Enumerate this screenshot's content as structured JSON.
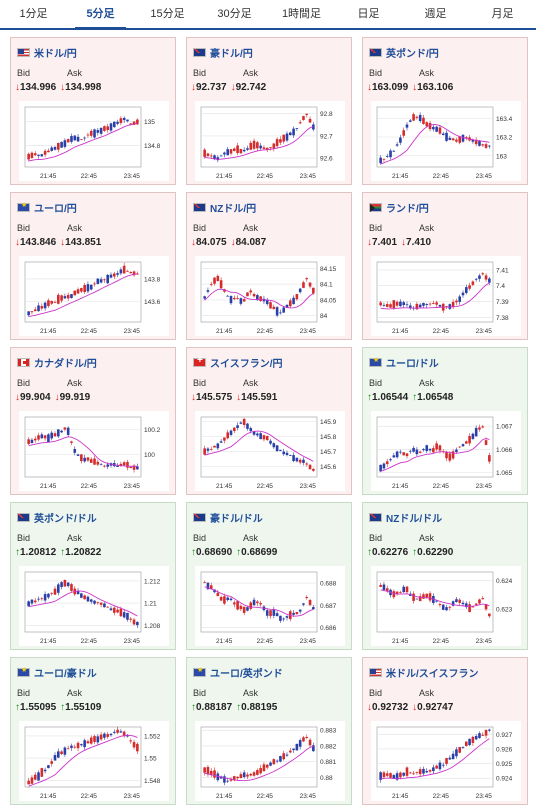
{
  "tabs": [
    {
      "label": "1分足",
      "active": false
    },
    {
      "label": "5分足",
      "active": true
    },
    {
      "label": "15分足",
      "active": false
    },
    {
      "label": "30分足",
      "active": false
    },
    {
      "label": "1時間足",
      "active": false
    },
    {
      "label": "日足",
      "active": false
    },
    {
      "label": "週足",
      "active": false
    },
    {
      "label": "月足",
      "active": false
    }
  ],
  "labels": {
    "bid": "Bid",
    "ask": "Ask"
  },
  "x_ticks": [
    "21:45",
    "22:45",
    "23:45"
  ],
  "colors": {
    "up_candle": "#d62b2b",
    "down_candle": "#2a3fa8",
    "ma_line": "#cc33cc",
    "arrow_down": "#dd2222",
    "arrow_up": "#1a8a1a",
    "card_down_bg": "#fdf0f0",
    "card_up_bg": "#eef6ee"
  },
  "pairs": [
    {
      "name": "米ドル/円",
      "flag": "us",
      "bid": "134.996",
      "ask": "134.998",
      "direction": "down",
      "y_ticks": [
        "135",
        "134.8"
      ],
      "ymin": 134.62,
      "ymax": 135.12,
      "trend": [
        134.7,
        134.72,
        134.71,
        134.75,
        134.78,
        134.8,
        134.83,
        134.86,
        134.84,
        134.88,
        134.9,
        134.92,
        134.94,
        134.96,
        134.99,
        135.02,
        134.98,
        135.0
      ]
    },
    {
      "name": "豪ドル/円",
      "flag": "au",
      "bid": "92.737",
      "ask": "92.742",
      "direction": "down",
      "y_ticks": [
        "92.8",
        "92.7",
        "92.6"
      ],
      "ymin": 92.56,
      "ymax": 92.83,
      "trend": [
        92.62,
        92.61,
        92.6,
        92.62,
        92.63,
        92.64,
        92.63,
        92.65,
        92.66,
        92.65,
        92.64,
        92.66,
        92.68,
        92.7,
        92.72,
        92.76,
        92.8,
        92.74
      ]
    },
    {
      "name": "英ポンド/円",
      "flag": "uk",
      "bid": "163.099",
      "ask": "163.106",
      "direction": "down",
      "y_ticks": [
        "163.4",
        "163.2",
        "163"
      ],
      "ymin": 162.88,
      "ymax": 163.52,
      "trend": [
        162.95,
        163.0,
        163.05,
        163.15,
        163.3,
        163.4,
        163.42,
        163.35,
        163.3,
        163.28,
        163.22,
        163.18,
        163.16,
        163.2,
        163.18,
        163.14,
        163.12,
        163.1
      ]
    },
    {
      "name": "ユーロ/円",
      "flag": "eu",
      "bid": "143.846",
      "ask": "143.851",
      "direction": "down",
      "y_ticks": [
        "143.8",
        "143.6"
      ],
      "ymin": 143.42,
      "ymax": 143.95,
      "trend": [
        143.5,
        143.52,
        143.55,
        143.58,
        143.6,
        143.62,
        143.65,
        143.66,
        143.7,
        143.72,
        143.74,
        143.78,
        143.8,
        143.82,
        143.85,
        143.88,
        143.86,
        143.85
      ]
    },
    {
      "name": "NZドル/円",
      "flag": "nz",
      "bid": "84.075",
      "ask": "84.087",
      "direction": "down",
      "y_ticks": [
        "84.15",
        "84.1",
        "84.05",
        "84"
      ],
      "ymin": 83.98,
      "ymax": 84.17,
      "trend": [
        84.06,
        84.1,
        84.12,
        84.08,
        84.05,
        84.06,
        84.04,
        84.08,
        84.06,
        84.05,
        84.04,
        84.02,
        84.01,
        84.03,
        84.05,
        84.08,
        84.12,
        84.08
      ]
    },
    {
      "name": "ランド/円",
      "flag": "za",
      "bid": "7.401",
      "ask": "7.410",
      "direction": "down",
      "y_ticks": [
        "7.41",
        "7.4",
        "7.39",
        "7.38"
      ],
      "ymin": 7.377,
      "ymax": 7.415,
      "trend": [
        7.388,
        7.387,
        7.388,
        7.389,
        7.388,
        7.386,
        7.387,
        7.388,
        7.389,
        7.388,
        7.386,
        7.387,
        7.39,
        7.395,
        7.4,
        7.404,
        7.408,
        7.403
      ]
    },
    {
      "name": "カナダドル/円",
      "flag": "ca",
      "bid": "99.904",
      "ask": "99.919",
      "direction": "down",
      "y_ticks": [
        "100.2",
        "100"
      ],
      "ymin": 99.82,
      "ymax": 100.3,
      "trend": [
        100.1,
        100.12,
        100.14,
        100.13,
        100.16,
        100.18,
        100.22,
        100.05,
        99.98,
        99.96,
        99.95,
        99.93,
        99.9,
        99.92,
        99.91,
        99.92,
        99.9,
        99.9
      ]
    },
    {
      "name": "スイスフラン/円",
      "flag": "ch",
      "bid": "145.575",
      "ask": "145.591",
      "direction": "down",
      "y_ticks": [
        "145.9",
        "145.8",
        "145.7",
        "145.6"
      ],
      "ymin": 145.53,
      "ymax": 145.93,
      "trend": [
        145.7,
        145.72,
        145.74,
        145.78,
        145.82,
        145.86,
        145.9,
        145.85,
        145.82,
        145.8,
        145.78,
        145.74,
        145.7,
        145.68,
        145.66,
        145.64,
        145.62,
        145.58
      ]
    },
    {
      "name": "ユーロ/ドル",
      "flag": "eu",
      "bid": "1.06544",
      "ask": "1.06548",
      "direction": "up",
      "y_ticks": [
        "1.067",
        "1.066",
        "1.065"
      ],
      "ymin": 1.0648,
      "ymax": 1.0674,
      "trend": [
        1.0652,
        1.0654,
        1.0657,
        1.0659,
        1.0657,
        1.066,
        1.0658,
        1.0661,
        1.0659,
        1.0662,
        1.0658,
        1.0656,
        1.066,
        1.0662,
        1.0664,
        1.0668,
        1.067,
        1.0656
      ]
    },
    {
      "name": "英ポンド/ドル",
      "flag": "uk",
      "bid": "1.20812",
      "ask": "1.20822",
      "direction": "up",
      "y_ticks": [
        "1.212",
        "1.21",
        "1.208"
      ],
      "ymin": 1.2074,
      "ymax": 1.2128,
      "trend": [
        1.21,
        1.2102,
        1.2104,
        1.2106,
        1.211,
        1.2116,
        1.2118,
        1.2112,
        1.2108,
        1.2104,
        1.2102,
        1.21,
        1.2098,
        1.2094,
        1.2092,
        1.209,
        1.2086,
        1.2081
      ]
    },
    {
      "name": "豪ドル/ドル",
      "flag": "au",
      "bid": "0.68690",
      "ask": "0.68699",
      "direction": "up",
      "y_ticks": [
        "0.688",
        "0.687",
        "0.686"
      ],
      "ymin": 0.6858,
      "ymax": 0.6885,
      "trend": [
        0.688,
        0.6878,
        0.6875,
        0.6872,
        0.6873,
        0.687,
        0.6868,
        0.6869,
        0.6872,
        0.687,
        0.6866,
        0.6867,
        0.6864,
        0.6865,
        0.6866,
        0.6868,
        0.6874,
        0.6869
      ]
    },
    {
      "name": "NZドル/ドル",
      "flag": "nz",
      "bid": "0.62276",
      "ask": "0.62290",
      "direction": "up",
      "y_ticks": [
        "0.624",
        "0.623"
      ],
      "ymin": 0.6222,
      "ymax": 0.6243,
      "trend": [
        0.6238,
        0.6237,
        0.6235,
        0.6236,
        0.6237,
        0.6234,
        0.6233,
        0.6235,
        0.6234,
        0.6232,
        0.623,
        0.6231,
        0.6233,
        0.6232,
        0.623,
        0.6232,
        0.6234,
        0.6228
      ]
    },
    {
      "name": "ユーロ/豪ドル",
      "flag": "eu",
      "bid": "1.55095",
      "ask": "1.55109",
      "direction": "up",
      "y_ticks": [
        "1.552",
        "1.55",
        "1.548"
      ],
      "ymin": 1.5474,
      "ymax": 1.5528,
      "trend": [
        1.5478,
        1.5482,
        1.5486,
        1.5492,
        1.55,
        1.5505,
        1.5508,
        1.551,
        1.5512,
        1.5514,
        1.5516,
        1.5518,
        1.552,
        1.5522,
        1.5524,
        1.5522,
        1.5516,
        1.5509
      ]
    },
    {
      "name": "ユーロ/英ポンド",
      "flag": "eu",
      "bid": "0.88187",
      "ask": "0.88195",
      "direction": "up",
      "y_ticks": [
        "0.883",
        "0.882",
        "0.881",
        "0.88"
      ],
      "ymin": 0.8794,
      "ymax": 0.8832,
      "trend": [
        0.8805,
        0.8803,
        0.8801,
        0.8799,
        0.8798,
        0.88,
        0.8802,
        0.8801,
        0.8803,
        0.8805,
        0.8808,
        0.881,
        0.8812,
        0.8815,
        0.8818,
        0.8822,
        0.8826,
        0.8819
      ]
    },
    {
      "name": "米ドル/スイスフラン",
      "flag": "us",
      "bid": "0.92732",
      "ask": "0.92747",
      "direction": "down",
      "y_ticks": [
        "0.927",
        "0.926",
        "0.925",
        "0.924"
      ],
      "ymin": 0.9234,
      "ymax": 0.9275,
      "trend": [
        0.9242,
        0.9243,
        0.9241,
        0.9242,
        0.9244,
        0.9243,
        0.9245,
        0.9244,
        0.9246,
        0.9248,
        0.925,
        0.9254,
        0.9258,
        0.9262,
        0.9265,
        0.9268,
        0.927,
        0.9273
      ]
    }
  ]
}
